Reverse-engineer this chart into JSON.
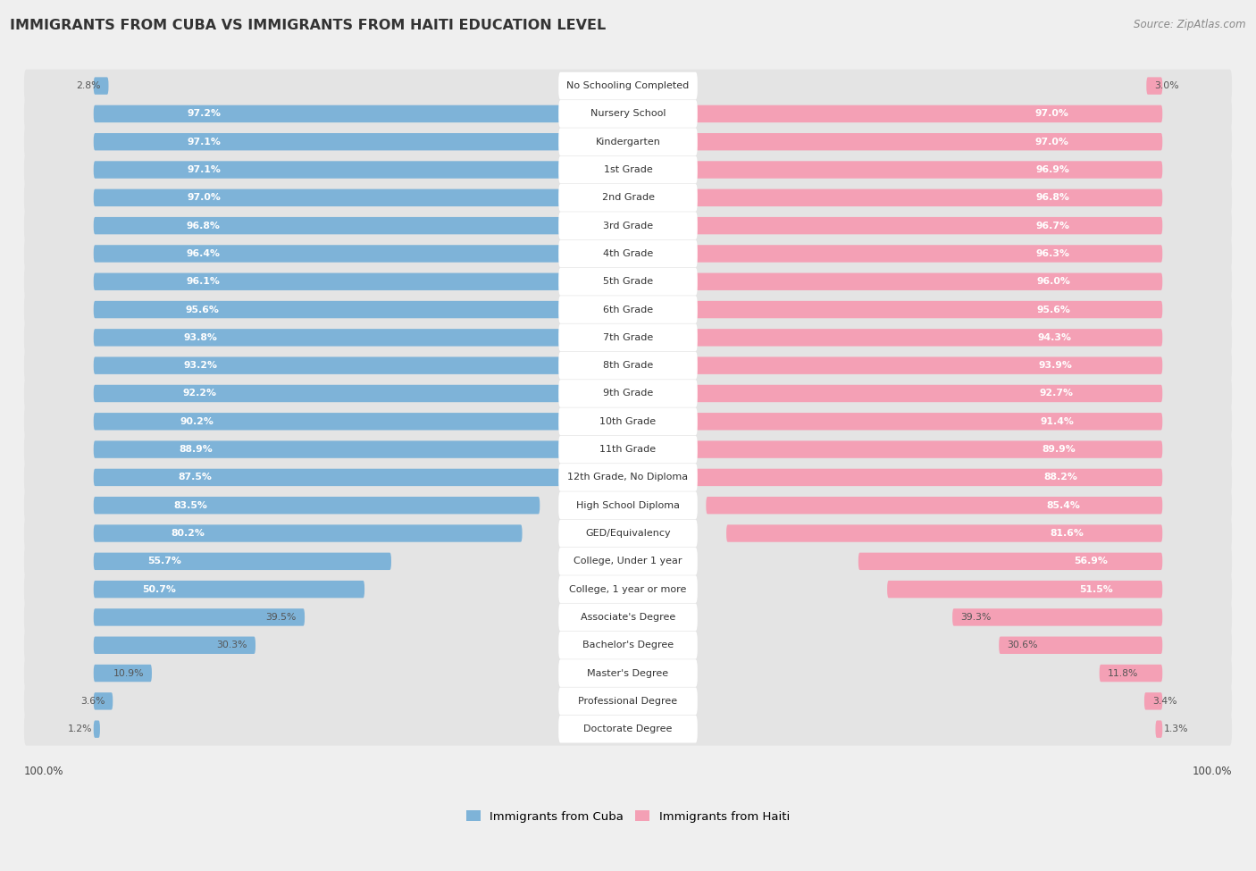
{
  "title": "IMMIGRANTS FROM CUBA VS IMMIGRANTS FROM HAITI EDUCATION LEVEL",
  "source": "Source: ZipAtlas.com",
  "categories": [
    "No Schooling Completed",
    "Nursery School",
    "Kindergarten",
    "1st Grade",
    "2nd Grade",
    "3rd Grade",
    "4th Grade",
    "5th Grade",
    "6th Grade",
    "7th Grade",
    "8th Grade",
    "9th Grade",
    "10th Grade",
    "11th Grade",
    "12th Grade, No Diploma",
    "High School Diploma",
    "GED/Equivalency",
    "College, Under 1 year",
    "College, 1 year or more",
    "Associate's Degree",
    "Bachelor's Degree",
    "Master's Degree",
    "Professional Degree",
    "Doctorate Degree"
  ],
  "cuba_values": [
    2.8,
    97.2,
    97.1,
    97.1,
    97.0,
    96.8,
    96.4,
    96.1,
    95.6,
    93.8,
    93.2,
    92.2,
    90.2,
    88.9,
    87.5,
    83.5,
    80.2,
    55.7,
    50.7,
    39.5,
    30.3,
    10.9,
    3.6,
    1.2
  ],
  "haiti_values": [
    3.0,
    97.0,
    97.0,
    96.9,
    96.8,
    96.7,
    96.3,
    96.0,
    95.6,
    94.3,
    93.9,
    92.7,
    91.4,
    89.9,
    88.2,
    85.4,
    81.6,
    56.9,
    51.5,
    39.3,
    30.6,
    11.8,
    3.4,
    1.3
  ],
  "cuba_color": "#7eb3d8",
  "haiti_color": "#f4a0b5",
  "background_color": "#efefef",
  "row_bg_color": "#e4e4e4",
  "legend_cuba": "Immigrants from Cuba",
  "legend_haiti": "Immigrants from Haiti",
  "label_fontsize": 8.0,
  "value_fontsize": 7.8,
  "title_fontsize": 11.5,
  "source_fontsize": 8.5
}
